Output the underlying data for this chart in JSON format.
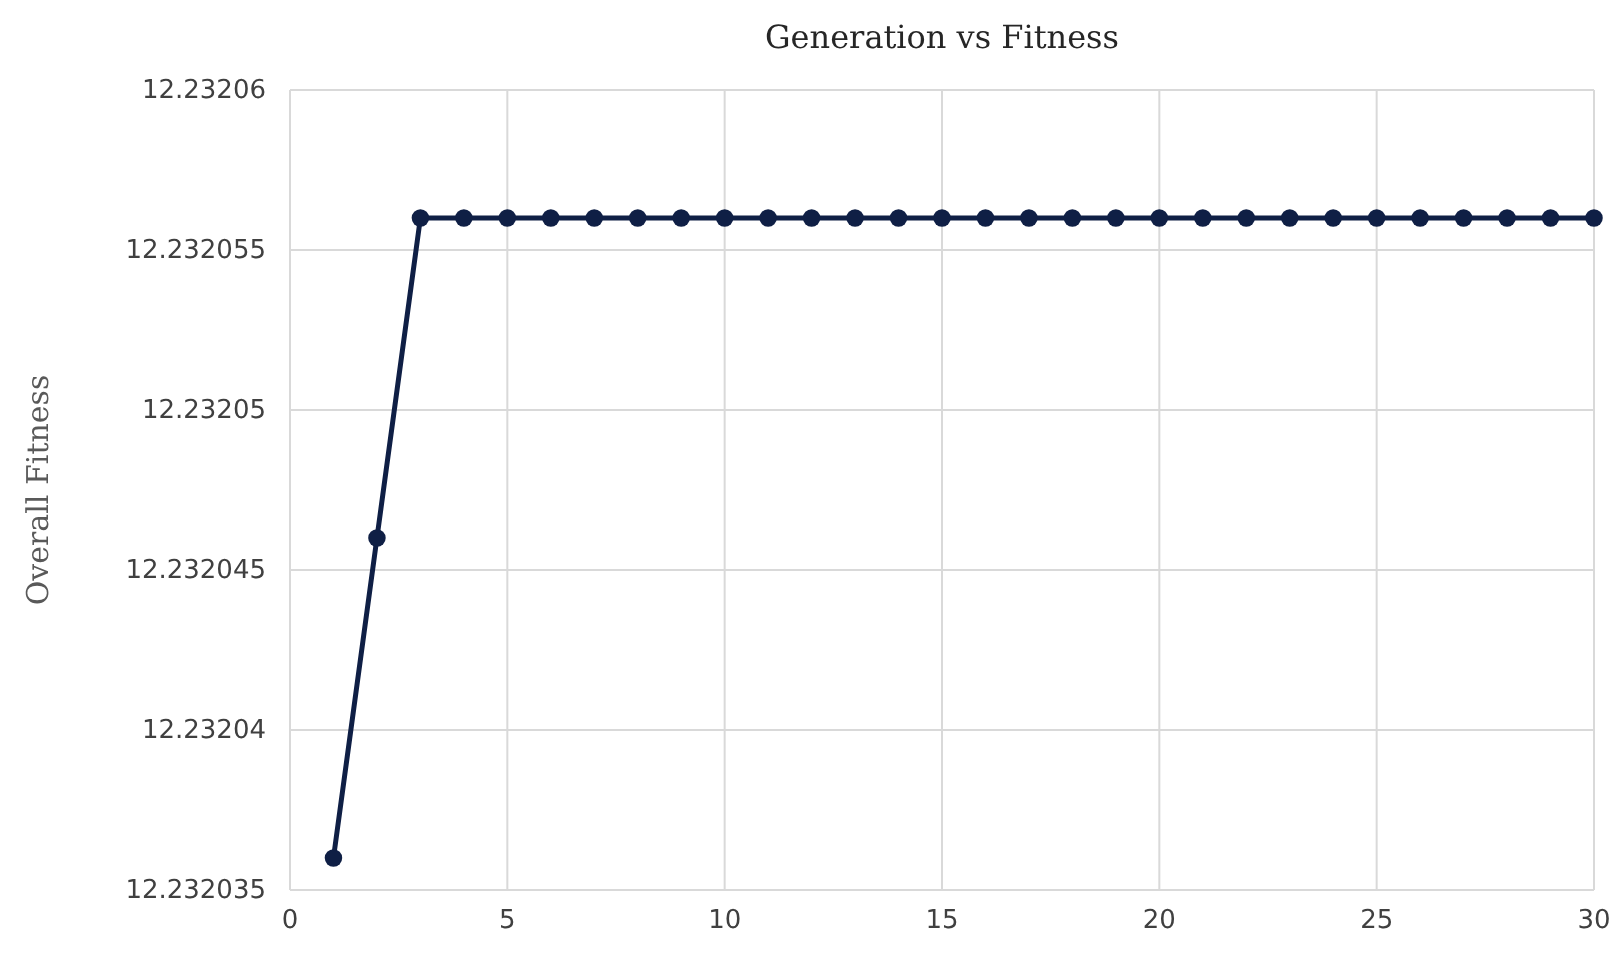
{
  "chart_data": {
    "type": "line",
    "title": "Generation vs Fitness",
    "ylabel": "Overall Fitness",
    "x": [
      1,
      2,
      3,
      4,
      5,
      6,
      7,
      8,
      9,
      10,
      11,
      12,
      13,
      14,
      15,
      16,
      17,
      18,
      19,
      20,
      21,
      22,
      23,
      24,
      25,
      26,
      27,
      28,
      29,
      30
    ],
    "series": [
      {
        "color": "#0f1f45",
        "values": [
          12.232036,
          12.232046,
          12.232056,
          12.232056,
          12.232056,
          12.232056,
          12.232056,
          12.232056,
          12.232056,
          12.232056,
          12.232056,
          12.232056,
          12.232056,
          12.232056,
          12.232056,
          12.232056,
          12.232056,
          12.232056,
          12.232056,
          12.232056,
          12.232056,
          12.232056,
          12.232056,
          12.232056,
          12.232056,
          12.232056,
          12.232056,
          12.232056,
          12.232056,
          12.232056
        ]
      }
    ],
    "xlim": [
      0,
      30
    ],
    "xticks": [
      0,
      5,
      10,
      15,
      20,
      25,
      30
    ],
    "ylim": [
      12.232035,
      12.23206
    ],
    "yticks": [
      12.232035,
      12.23204,
      12.232045,
      12.23205,
      12.232055,
      12.23206
    ],
    "grid": true,
    "marker": "circle",
    "line_style": "solid"
  }
}
